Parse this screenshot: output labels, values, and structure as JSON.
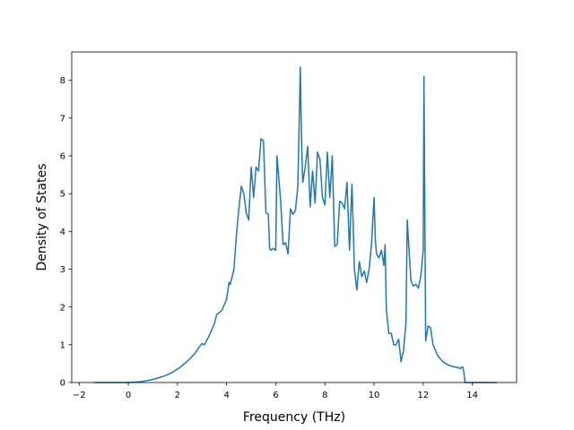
{
  "chart_data": {
    "type": "line",
    "title": "",
    "xlabel": "Frequency (THz)",
    "ylabel": "Density of States",
    "xlim": [
      -2.3,
      15.8
    ],
    "ylim": [
      0,
      8.75
    ],
    "xticks": [
      -2,
      0,
      2,
      4,
      6,
      8,
      10,
      12,
      14
    ],
    "yticks": [
      0,
      1,
      2,
      3,
      4,
      5,
      6,
      7,
      8
    ],
    "grid": false,
    "legend": "none",
    "series": [
      {
        "color": "#1f77b4",
        "x": [
          -1.4,
          -0.5,
          0.0,
          0.5,
          1.0,
          1.5,
          1.8,
          2.1,
          2.4,
          2.7,
          2.9,
          3.0,
          3.1,
          3.3,
          3.5,
          3.6,
          3.7,
          3.8,
          3.9,
          4.0,
          4.1,
          4.15,
          4.3,
          4.4,
          4.5,
          4.6,
          4.7,
          4.8,
          4.9,
          5.0,
          5.1,
          5.2,
          5.3,
          5.4,
          5.5,
          5.6,
          5.7,
          5.75,
          5.8,
          5.9,
          6.0,
          6.05,
          6.2,
          6.3,
          6.4,
          6.5,
          6.6,
          6.7,
          6.8,
          6.9,
          7.0,
          7.05,
          7.1,
          7.2,
          7.3,
          7.4,
          7.5,
          7.6,
          7.7,
          7.8,
          7.9,
          8.0,
          8.1,
          8.2,
          8.3,
          8.4,
          8.5,
          8.6,
          8.7,
          8.8,
          8.9,
          9.0,
          9.1,
          9.15,
          9.2,
          9.3,
          9.4,
          9.5,
          9.6,
          9.7,
          9.8,
          9.9,
          10.0,
          10.05,
          10.1,
          10.2,
          10.3,
          10.4,
          10.45,
          10.5,
          10.6,
          10.7,
          10.8,
          10.9,
          11.0,
          11.1,
          11.2,
          11.3,
          11.35,
          11.5,
          11.6,
          11.7,
          11.8,
          11.9,
          12.0,
          12.03,
          12.1,
          12.2,
          12.3,
          12.4,
          12.6,
          12.8,
          13.0,
          13.2,
          13.4,
          13.5,
          13.6,
          13.65,
          13.7,
          14.0,
          15.0
        ],
        "y": [
          0.0,
          0.0,
          0.0,
          0.02,
          0.08,
          0.18,
          0.27,
          0.4,
          0.56,
          0.76,
          0.95,
          1.03,
          1.0,
          1.25,
          1.55,
          1.8,
          1.85,
          1.9,
          2.05,
          2.2,
          2.65,
          2.6,
          3.0,
          3.9,
          4.6,
          5.2,
          5.0,
          4.5,
          4.3,
          5.7,
          4.9,
          5.7,
          5.6,
          6.45,
          6.4,
          4.5,
          4.45,
          3.55,
          3.5,
          3.55,
          3.5,
          6.0,
          4.8,
          3.65,
          3.7,
          3.4,
          4.6,
          4.45,
          4.55,
          5.2,
          8.35,
          6.4,
          5.3,
          5.7,
          6.25,
          4.65,
          5.6,
          4.75,
          6.1,
          5.9,
          4.9,
          4.7,
          6.1,
          4.9,
          6.0,
          3.6,
          3.65,
          4.8,
          4.75,
          4.6,
          5.3,
          3.5,
          5.25,
          4.2,
          3.0,
          2.45,
          3.2,
          2.8,
          2.95,
          2.65,
          3.0,
          3.7,
          4.9,
          3.8,
          3.4,
          3.3,
          3.5,
          3.1,
          3.65,
          1.95,
          1.3,
          1.3,
          1.0,
          1.0,
          1.15,
          0.55,
          0.85,
          1.6,
          4.3,
          2.7,
          2.55,
          2.6,
          2.5,
          2.8,
          3.5,
          8.1,
          1.1,
          1.5,
          1.45,
          1.0,
          0.7,
          0.55,
          0.47,
          0.42,
          0.4,
          0.37,
          0.42,
          0.3,
          0.0,
          0.0,
          0.0
        ]
      }
    ]
  }
}
